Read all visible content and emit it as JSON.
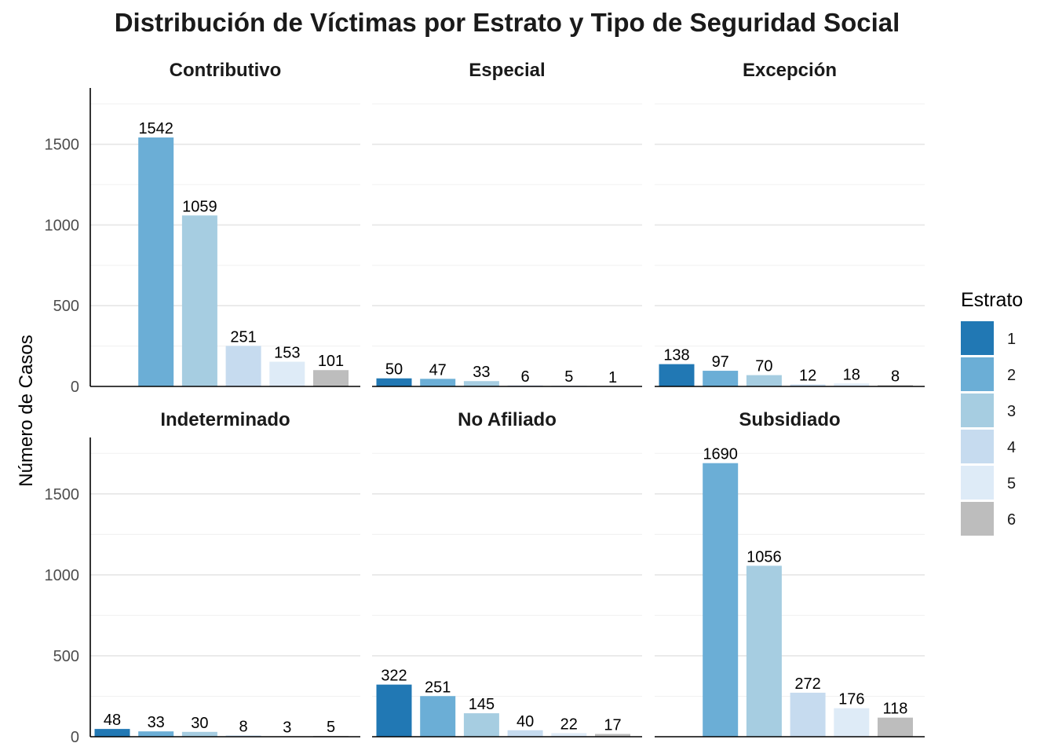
{
  "chart_data": {
    "type": "bar",
    "title": "Distribución de Víctimas por Estrato y Tipo de Seguridad Social",
    "ylabel": "Número de Casos",
    "xlabel": "",
    "ylim": [
      0,
      1800
    ],
    "y_ticks": [
      0,
      500,
      1000,
      1500
    ],
    "grid": true,
    "legend": {
      "title": "Estrato",
      "position": "right",
      "entries": [
        "1",
        "2",
        "3",
        "4",
        "5",
        "6"
      ]
    },
    "colors": {
      "1": "#2178b4",
      "2": "#6baed6",
      "3": "#a6cde1",
      "4": "#c6dbef",
      "5": "#deebf7",
      "6": "#bdbdbd"
    },
    "categories": [
      "1",
      "2",
      "3",
      "4",
      "5",
      "6"
    ],
    "facets": [
      {
        "name": "Contributivo",
        "values": [
          null,
          1542,
          1059,
          251,
          153,
          101
        ]
      },
      {
        "name": "Especial",
        "values": [
          50,
          47,
          33,
          6,
          5,
          1
        ]
      },
      {
        "name": "Excepción",
        "values": [
          138,
          97,
          70,
          12,
          18,
          8
        ]
      },
      {
        "name": "Indeterminado",
        "values": [
          48,
          33,
          30,
          8,
          3,
          5
        ]
      },
      {
        "name": "No Afiliado",
        "values": [
          322,
          251,
          145,
          40,
          22,
          17
        ]
      },
      {
        "name": "Subsidiado",
        "values": [
          null,
          1690,
          1056,
          272,
          176,
          118
        ]
      }
    ]
  }
}
